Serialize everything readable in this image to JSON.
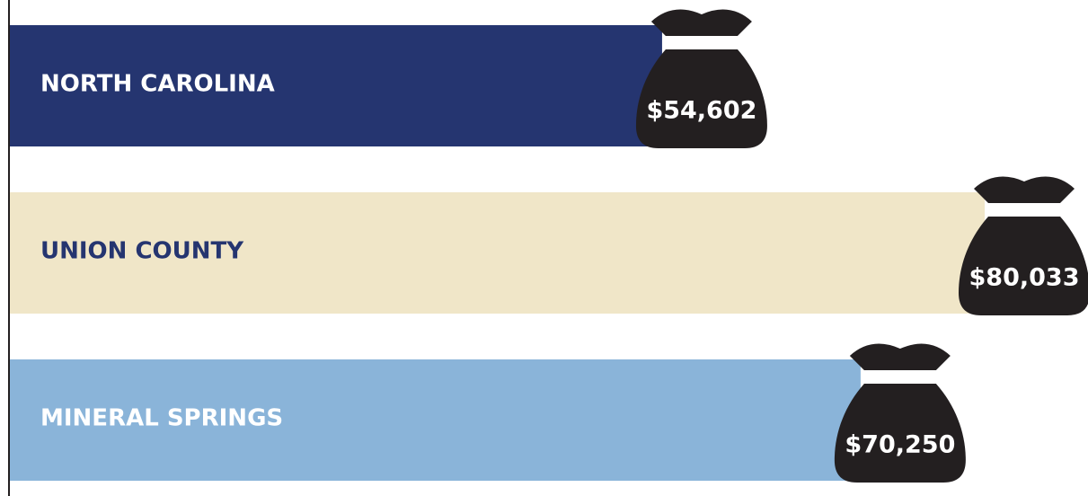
{
  "chart_data": {
    "type": "bar",
    "orientation": "horizontal",
    "categories": [
      "NORTH CAROLINA",
      "UNION COUNTY",
      "MINERAL SPRINGS"
    ],
    "values": [
      54602,
      80033,
      70250
    ],
    "value_labels": [
      "$54,602",
      "$80,033",
      "$70,250"
    ],
    "colors": [
      "#253570",
      "#f0e6c8",
      "#8ab4d9"
    ],
    "label_colors": [
      "#ffffff",
      "#253570",
      "#ffffff"
    ],
    "marker_color": "#231f20"
  }
}
